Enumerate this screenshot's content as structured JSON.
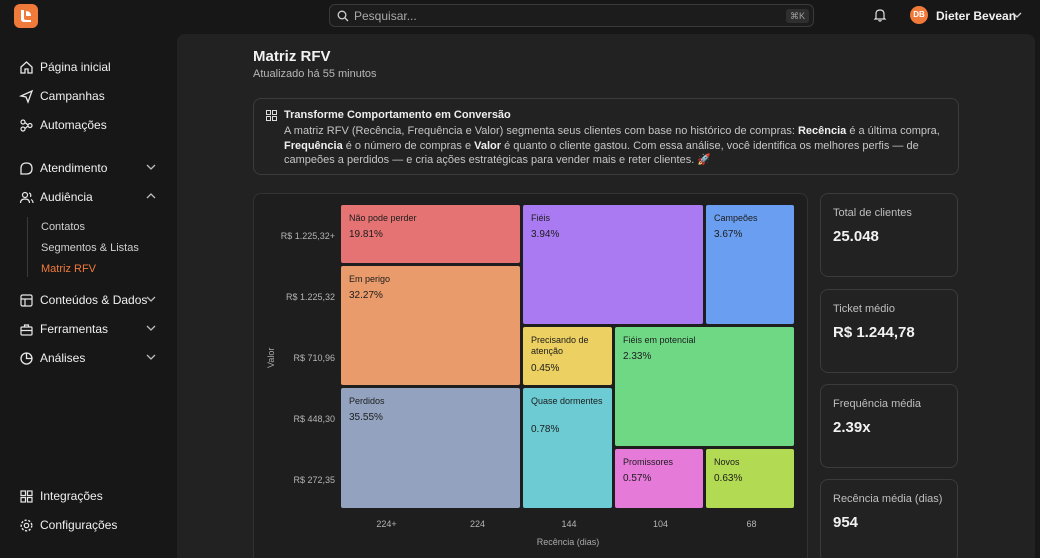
{
  "search": {
    "placeholder": "Pesquisar...",
    "shortcut": "⌘K"
  },
  "user": {
    "initials": "DB",
    "name": "Dieter Bevean"
  },
  "sidebar": {
    "items": [
      {
        "label": "Página inicial",
        "icon": "home-icon"
      },
      {
        "label": "Campanhas",
        "icon": "send-icon"
      },
      {
        "label": "Automações",
        "icon": "automation-icon"
      },
      {
        "label": "Atendimento",
        "icon": "chat-icon"
      },
      {
        "label": "Audiência",
        "icon": "users-icon"
      },
      {
        "label": "Conteúdos & Dados",
        "icon": "layers-icon"
      },
      {
        "label": "Ferramentas",
        "icon": "toolbox-icon"
      },
      {
        "label": "Análises",
        "icon": "pie-chart-icon"
      },
      {
        "label": "Integrações",
        "icon": "grid-plus-icon"
      },
      {
        "label": "Configurações",
        "icon": "gear-icon"
      }
    ],
    "audience_sub": [
      "Contatos",
      "Segmentos & Listas",
      "Matriz RFV"
    ],
    "active_sub": "Matriz RFV"
  },
  "page": {
    "title": "Matriz RFV",
    "subtitle": "Atualizado há 55 minutos"
  },
  "info": {
    "title": "Transforme Comportamento em Conversão",
    "p1": "A matriz RFV (Recência, Frequência e Valor) segmenta seus clientes com base no histórico de compras: ",
    "b1": "Recência",
    "p2": " é a última compra, ",
    "b2": "Frequência",
    "p3": " é o número de compras e ",
    "b3": "Valor",
    "p4": " é quanto o cliente gastou. Com essa análise, você identifica os melhores perfis — de campeões a perdidos — e cria ações estratégicas para vender mais e reter clientes. 🚀"
  },
  "chart_data": {
    "type": "heatmap",
    "xlabel": "Recência (dias)",
    "ylabel": "Valor",
    "x_ticks": [
      "224+",
      "224",
      "144",
      "104",
      "68"
    ],
    "y_ticks": [
      "R$ 1.225,32+",
      "R$ 1.225,32",
      "R$ 710,96",
      "R$ 448,30",
      "R$ 272,35"
    ],
    "segments": [
      {
        "name": "Não pode perder",
        "percent": "19.81%",
        "value": 19.81,
        "color": "#e57373",
        "cells": {
          "x": [
            0,
            1
          ],
          "y": [
            0,
            0
          ]
        }
      },
      {
        "name": "Fiéis",
        "percent": "3.94%",
        "value": 3.94,
        "color": "#a97af2",
        "cells": {
          "x": [
            2,
            3
          ],
          "y": [
            0,
            1
          ]
        }
      },
      {
        "name": "Campeões",
        "percent": "3.67%",
        "value": 3.67,
        "color": "#6a9ef0",
        "cells": {
          "x": [
            4,
            4
          ],
          "y": [
            0,
            1
          ]
        }
      },
      {
        "name": "Em perigo",
        "percent": "32.27%",
        "value": 32.27,
        "color": "#e99b6b",
        "cells": {
          "x": [
            0,
            1
          ],
          "y": [
            1,
            2
          ]
        }
      },
      {
        "name": "Precisando de atenção",
        "percent": "0.45%",
        "value": 0.45,
        "color": "#ecd062",
        "cells": {
          "x": [
            2,
            2
          ],
          "y": [
            2,
            2
          ]
        }
      },
      {
        "name": "Fiéis em potencial",
        "percent": "2.33%",
        "value": 2.33,
        "color": "#6fd885",
        "cells": {
          "x": [
            3,
            4
          ],
          "y": [
            2,
            3
          ]
        }
      },
      {
        "name": "Perdidos",
        "percent": "35.55%",
        "value": 35.55,
        "color": "#93a3bf",
        "cells": {
          "x": [
            0,
            1
          ],
          "y": [
            3,
            4
          ]
        }
      },
      {
        "name": "Quase dormentes",
        "percent": "0.78%",
        "value": 0.78,
        "color": "#6ccbd3",
        "cells": {
          "x": [
            2,
            2
          ],
          "y": [
            3,
            4
          ]
        }
      },
      {
        "name": "Promissores",
        "percent": "0.57%",
        "value": 0.57,
        "color": "#e57ad9",
        "cells": {
          "x": [
            3,
            3
          ],
          "y": [
            4,
            4
          ]
        }
      },
      {
        "name": "Novos",
        "percent": "0.63%",
        "value": 0.63,
        "color": "#b2da52",
        "cells": {
          "x": [
            4,
            4
          ],
          "y": [
            4,
            4
          ]
        }
      }
    ]
  },
  "kpis": [
    {
      "label": "Total de clientes",
      "value": "25.048"
    },
    {
      "label": "Ticket médio",
      "value": "R$ 1.244,78"
    },
    {
      "label": "Frequência média",
      "value": "2.39x"
    },
    {
      "label": "Recência média (dias)",
      "value": "954"
    }
  ]
}
